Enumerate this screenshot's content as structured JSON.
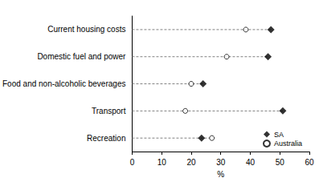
{
  "chart_data": {
    "type": "scatter",
    "orientation": "horizontal",
    "xlabel": "%",
    "categories": [
      "Current housing costs",
      "Domestic fuel and power",
      "Food and non-alcoholic beverages",
      "Transport",
      "Recreation"
    ],
    "series": [
      {
        "name": "SA",
        "color": "#000000",
        "marker": "diamond",
        "values": [
          47,
          46,
          24,
          51,
          23.5
        ]
      },
      {
        "name": "Australia",
        "color": "#000000",
        "marker": "open_circle",
        "values": [
          38.5,
          32,
          20,
          18,
          27
        ]
      }
    ],
    "xlim": [
      0,
      60
    ],
    "xticks": [
      0,
      10,
      20,
      30,
      40,
      50,
      60
    ],
    "line_style": "dashed",
    "legend": "lower right",
    "grid": false
  }
}
